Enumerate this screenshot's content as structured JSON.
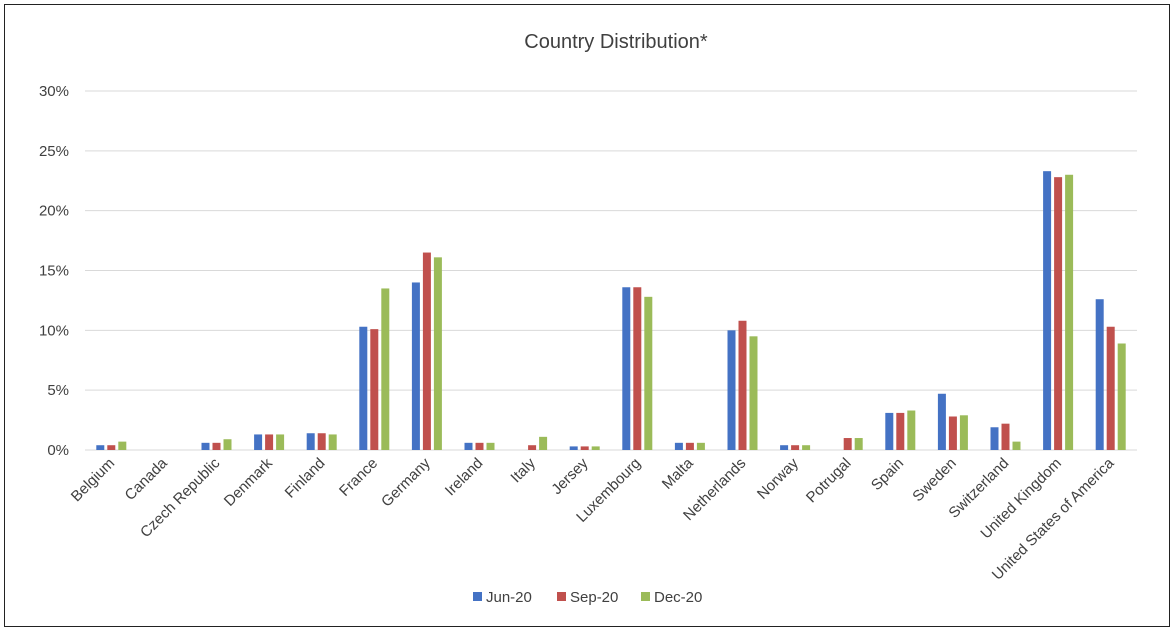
{
  "chart_data": {
    "type": "bar",
    "title": "Country Distribution*",
    "xlabel": "",
    "ylabel": "",
    "ylim": [
      0,
      30
    ],
    "yticks": [
      "0%",
      "5%",
      "10%",
      "15%",
      "20%",
      "25%",
      "30%"
    ],
    "ytick_values": [
      0,
      5,
      10,
      15,
      20,
      25,
      30
    ],
    "grid": true,
    "legend_position": "bottom",
    "categories": [
      "Belgium",
      "Canada",
      "Czech Republic",
      "Denmark",
      "Finland",
      "France",
      "Germany",
      "Ireland",
      "Italy",
      "Jersey",
      "Luxembourg",
      "Malta",
      "Netherlands",
      "Norway",
      "Potrugal",
      "Spain",
      "Sweden",
      "Switzerland",
      "United Kingdom",
      "United States of America"
    ],
    "series": [
      {
        "name": "Jun-20",
        "color": "#4472C4",
        "values": [
          0.4,
          0,
          0.6,
          1.3,
          1.4,
          10.3,
          14.0,
          0.6,
          0,
          0.3,
          13.6,
          0.6,
          10.0,
          0.4,
          0,
          3.1,
          4.7,
          1.9,
          23.3,
          12.6
        ]
      },
      {
        "name": "Sep-20",
        "color": "#C0504D",
        "values": [
          0.4,
          0,
          0.6,
          1.3,
          1.4,
          10.1,
          16.5,
          0.6,
          0.4,
          0.3,
          13.6,
          0.6,
          10.8,
          0.4,
          1.0,
          3.1,
          2.8,
          2.2,
          22.8,
          10.3
        ]
      },
      {
        "name": "Dec-20",
        "color": "#9BBB59",
        "values": [
          0.7,
          0,
          0.9,
          1.3,
          1.3,
          13.5,
          16.1,
          0.6,
          1.1,
          0.3,
          12.8,
          0.6,
          9.5,
          0.4,
          1.0,
          3.3,
          2.9,
          0.7,
          23.0,
          8.9
        ]
      }
    ]
  }
}
